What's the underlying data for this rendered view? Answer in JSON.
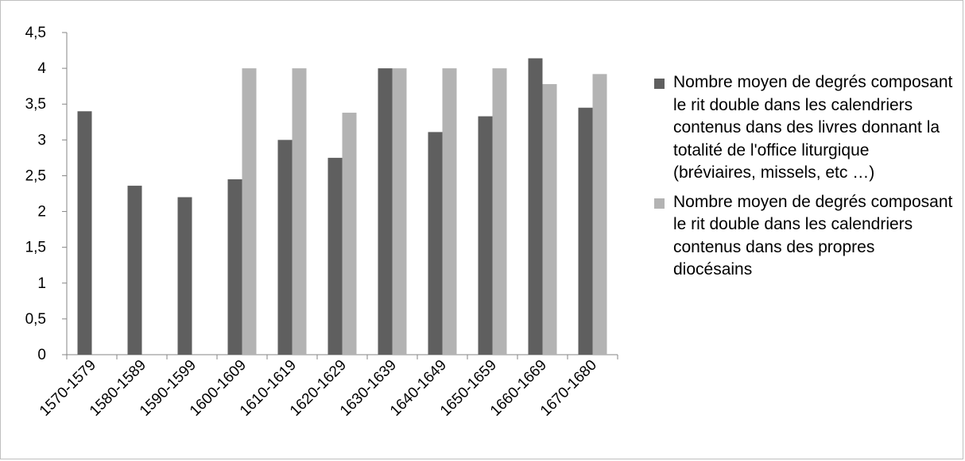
{
  "chart_data": {
    "type": "bar",
    "categories": [
      "1570-1579",
      "1580-1589",
      "1590-1599",
      "1600-1609",
      "1610-1619",
      "1620-1629",
      "1630-1639",
      "1640-1649",
      "1650-1659",
      "1660-1669",
      "1670-1680"
    ],
    "series": [
      {
        "name": "Nombre moyen de degrés composant le rit double dans les calendriers contenus dans des livres donnant la totalité de l'office liturgique (bréviaires, missels, etc …)",
        "color": "#5f5f5f",
        "values": [
          3.4,
          2.36,
          2.2,
          2.45,
          3.0,
          2.75,
          4.0,
          3.11,
          3.33,
          4.14,
          3.45
        ]
      },
      {
        "name": "Nombre moyen de degrés composant le rit double dans les calendriers contenus dans des propres diocésains",
        "color": "#b3b3b3",
        "values": [
          null,
          null,
          null,
          4.0,
          4.0,
          3.38,
          4.0,
          4.0,
          4.0,
          3.78,
          3.92
        ]
      }
    ],
    "yticks": [
      "0",
      "0,5",
      "1",
      "1,5",
      "2",
      "2,5",
      "3",
      "3,5",
      "4",
      "4,5"
    ],
    "ylim": [
      0,
      4.5
    ],
    "grid": false,
    "legend_position": "right"
  }
}
